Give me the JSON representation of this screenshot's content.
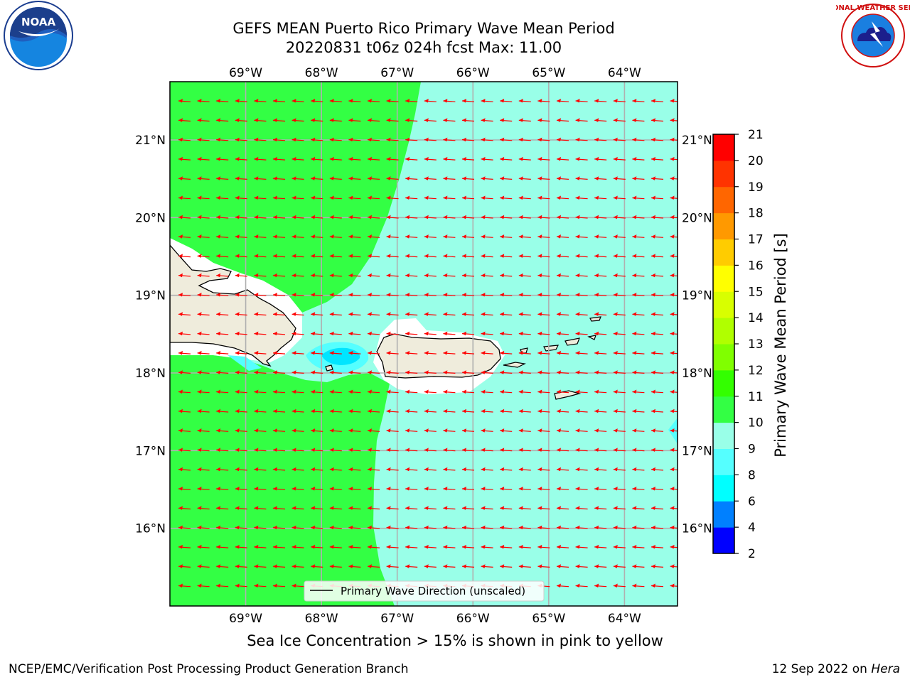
{
  "title_line1": "GEFS MEAN Puerto Rico Primary Wave Mean Period",
  "title_line2": "20220831 t06z 024h fcst   Max: 11.00",
  "subtitle": "Sea Ice Concentration > 15% is shown in pink to yellow",
  "credit_left": "NCEP/EMC/Verification Post Processing Product Generation Branch",
  "credit_date": "12 Sep 2022 on ",
  "credit_host": "Hera",
  "legend_label": "Primary Wave Direction (unscaled)",
  "colorbar_label": "Primary Wave Mean Period [s]",
  "logos": {
    "noaa_text": "NOAA",
    "nws_text": "NATIONAL WEATHER SERVICE"
  },
  "map": {
    "lon_range": [
      -70.0,
      -63.3
    ],
    "lat_range": [
      15.0,
      21.75
    ],
    "lon_ticks": [
      {
        "value": -69,
        "label": "69°W"
      },
      {
        "value": -68,
        "label": "68°W"
      },
      {
        "value": -67,
        "label": "67°W"
      },
      {
        "value": -66,
        "label": "66°W"
      },
      {
        "value": -65,
        "label": "65°W"
      },
      {
        "value": -64,
        "label": "64°W"
      }
    ],
    "lat_ticks": [
      {
        "value": 21,
        "label": "21°N"
      },
      {
        "value": 20,
        "label": "20°N"
      },
      {
        "value": 19,
        "label": "19°N"
      },
      {
        "value": 18,
        "label": "18°N"
      },
      {
        "value": 17,
        "label": "17°N"
      },
      {
        "value": 16,
        "label": "16°N"
      }
    ],
    "grid": true,
    "arrow_direction": "westward",
    "arrow_color": "#ff0000"
  },
  "colorbar": {
    "levels": [
      {
        "value": 2,
        "label": "2"
      },
      {
        "value": 4,
        "label": "4"
      },
      {
        "value": 6,
        "label": "6"
      },
      {
        "value": 8,
        "label": "8"
      },
      {
        "value": 9,
        "label": "9"
      },
      {
        "value": 10,
        "label": "10"
      },
      {
        "value": 11,
        "label": "11"
      },
      {
        "value": 12,
        "label": "12"
      },
      {
        "value": 13,
        "label": "13"
      },
      {
        "value": 14,
        "label": "14"
      },
      {
        "value": 15,
        "label": "15"
      },
      {
        "value": 16,
        "label": "16"
      },
      {
        "value": 17,
        "label": "17"
      },
      {
        "value": 18,
        "label": "18"
      },
      {
        "value": 19,
        "label": "19"
      },
      {
        "value": 20,
        "label": "20"
      },
      {
        "value": 21,
        "label": "21"
      }
    ],
    "colors": [
      "#0000ff",
      "#0080ff",
      "#00ffff",
      "#55ffff",
      "#99ffe8",
      "#33ff44",
      "#33ff00",
      "#80ff00",
      "#b0ff00",
      "#d8ff00",
      "#ffff00",
      "#ffcc00",
      "#ff9900",
      "#ff6600",
      "#ff3300",
      "#ff0000"
    ]
  },
  "field_colors": {
    "period_9_10": "#99ffe8",
    "period_10_11": "#33ff44",
    "period_8_9": "#55ffff",
    "period_6_8": "#00e5ff",
    "land": "#efecdc"
  }
}
